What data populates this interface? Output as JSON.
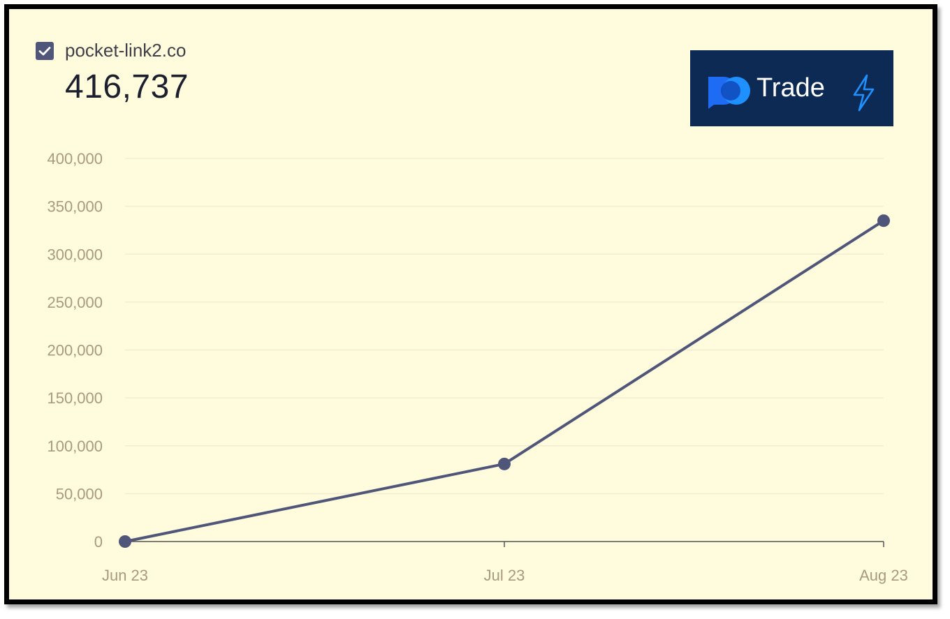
{
  "legend": {
    "label": "pocket-link2.co",
    "checked": true,
    "checkbox_icon": "checkbox-checked-icon"
  },
  "summary": {
    "value": "416,737"
  },
  "brand": {
    "text": "Trade",
    "logo_icon": "pocket-option-logo-icon",
    "bolt_icon": "lightning-bolt-icon"
  },
  "colors": {
    "background": "#fffbdc",
    "line": "#4f5679",
    "tick_label": "#a89a7e",
    "grid": "#f3ecd3",
    "brand_bg": "#0d2a55",
    "brand_accent": "#1f6cf4"
  },
  "chart_data": {
    "type": "line",
    "x": [
      "Jun 23",
      "Jul 23",
      "Aug 23"
    ],
    "series": [
      {
        "values": [
          0,
          81000,
          335000
        ]
      }
    ],
    "ylim": [
      0,
      400000
    ],
    "yticks": [
      "0",
      "50,000",
      "100,000",
      "150,000",
      "200,000",
      "250,000",
      "300,000",
      "350,000",
      "400,000"
    ],
    "ytick_values": [
      0,
      50000,
      100000,
      150000,
      200000,
      250000,
      300000,
      350000,
      400000
    ],
    "grid": true,
    "title": "",
    "xlabel": "",
    "ylabel": ""
  }
}
